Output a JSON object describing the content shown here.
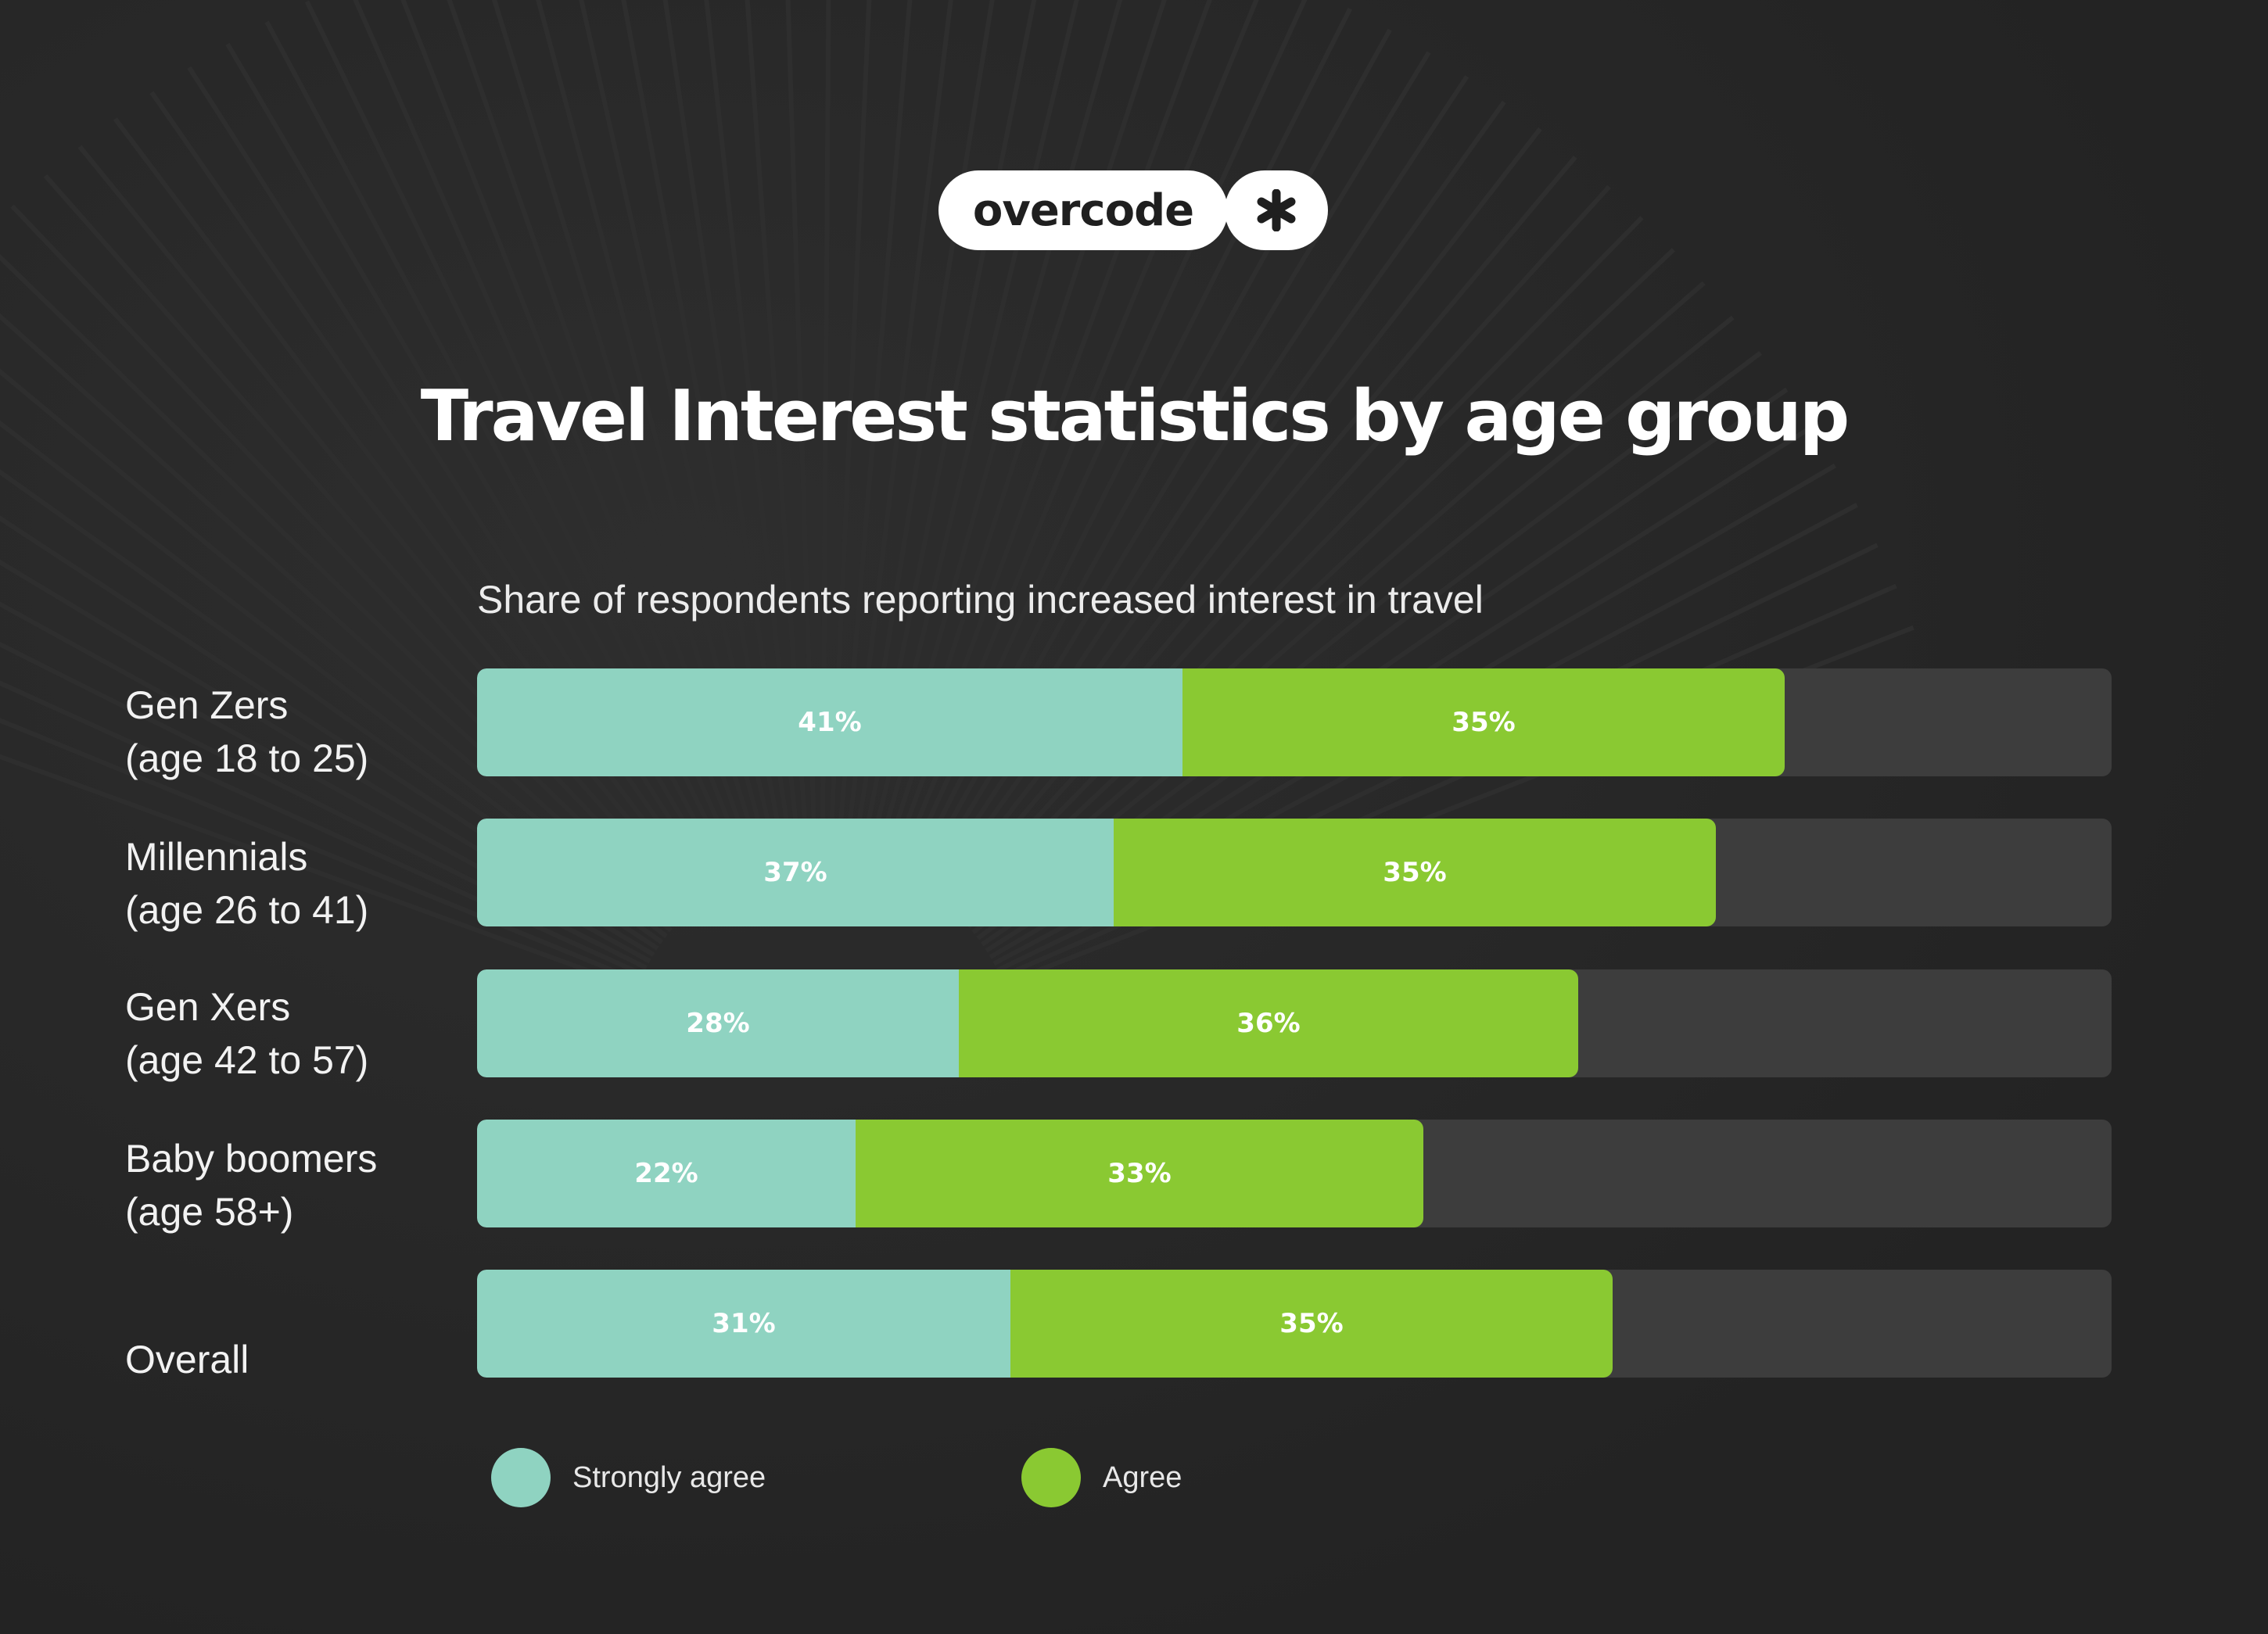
{
  "logo": {
    "text": "overcode",
    "mark": "asterisk-icon"
  },
  "chart_data": {
    "type": "bar",
    "stacked": true,
    "orientation": "horizontal",
    "title": "Travel Interest statistics by age group",
    "subtitle": "Share of respondents reporting increased interest in travel",
    "categories": [
      [
        "Gen Zers",
        "(age 18 to 25)"
      ],
      [
        "Millennials",
        "(age 26 to 41)"
      ],
      [
        "Gen Xers",
        "(age 42 to 57)"
      ],
      [
        "Baby boomers",
        "(age 58+)"
      ],
      [
        "Overall"
      ]
    ],
    "series": [
      {
        "name": "Strongly agree",
        "color": "#8fd3c1",
        "values": [
          41,
          37,
          28,
          22,
          31
        ]
      },
      {
        "name": "Agree",
        "color": "#8ac932",
        "values": [
          35,
          35,
          36,
          33,
          35
        ]
      }
    ],
    "value_suffix": "%",
    "xlim": [
      0,
      95
    ],
    "legend": "bottom-left",
    "track_color": "#3d3d3d"
  }
}
